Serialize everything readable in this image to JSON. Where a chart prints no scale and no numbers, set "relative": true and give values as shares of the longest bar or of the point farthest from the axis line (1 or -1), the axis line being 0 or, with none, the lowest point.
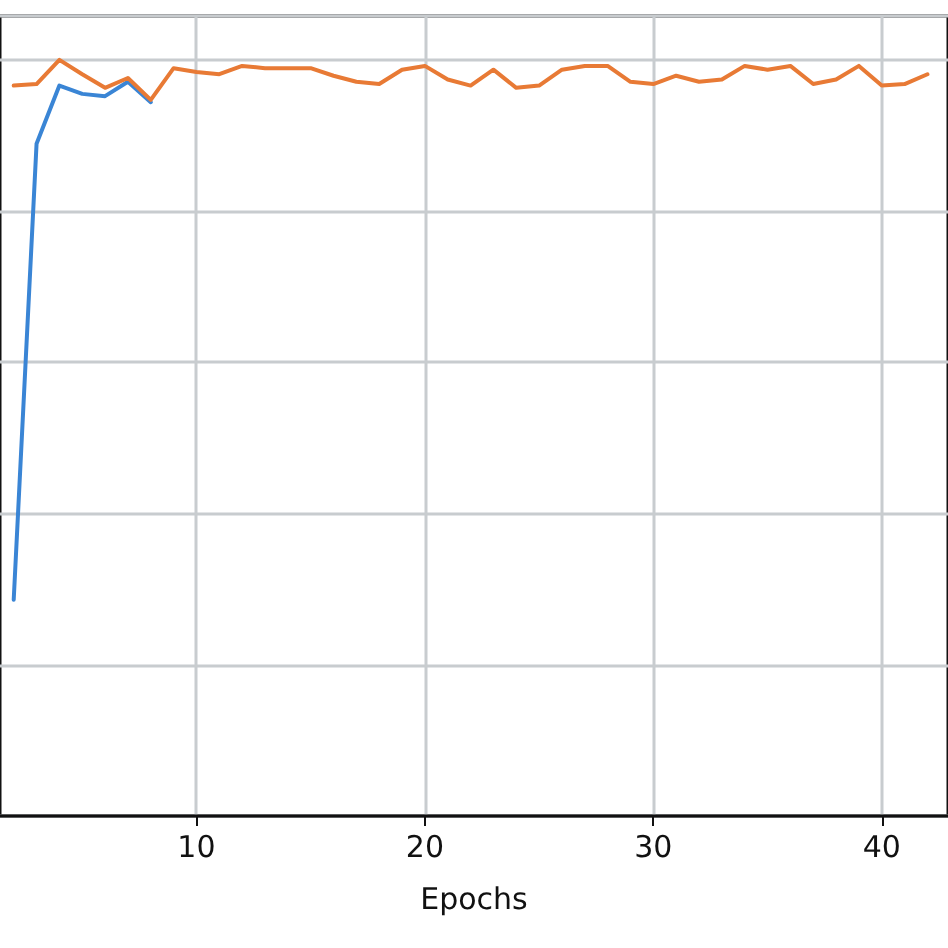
{
  "chart_data": {
    "type": "line",
    "xlabel": "Epochs",
    "relative": true,
    "xlim": [
      1.4,
      42.9
    ],
    "xticks": [
      10,
      20,
      30,
      40
    ],
    "grid": true,
    "line_style": "solid",
    "marker": "none",
    "series": [
      {
        "color": "#3a85d5",
        "x": [
          2,
          3,
          4,
          5,
          6,
          7,
          8
        ],
        "values": [
          0.286,
          0.889,
          0.966,
          0.955,
          0.952,
          0.971,
          0.944
        ]
      },
      {
        "color": "#e87a35",
        "x": [
          2,
          3,
          4,
          5,
          6,
          7,
          8,
          9,
          10,
          11,
          12,
          13,
          14,
          15,
          16,
          17,
          18,
          19,
          20,
          21,
          22,
          23,
          24,
          25,
          26,
          27,
          28,
          29,
          30,
          31,
          32,
          33,
          34,
          35,
          36,
          37,
          38,
          39,
          40,
          41,
          42
        ],
        "values": [
          0.966,
          0.968,
          1,
          0.981,
          0.963,
          0.976,
          0.947,
          0.989,
          0.984,
          0.981,
          0.992,
          0.989,
          0.989,
          0.989,
          0.979,
          0.971,
          0.968,
          0.987,
          0.992,
          0.974,
          0.966,
          0.987,
          0.963,
          0.966,
          0.987,
          0.992,
          0.992,
          0.971,
          0.968,
          0.979,
          0.971,
          0.974,
          0.992,
          0.987,
          0.992,
          0.968,
          0.974,
          0.992,
          0.966,
          0.968,
          0.981
        ]
      }
    ]
  }
}
